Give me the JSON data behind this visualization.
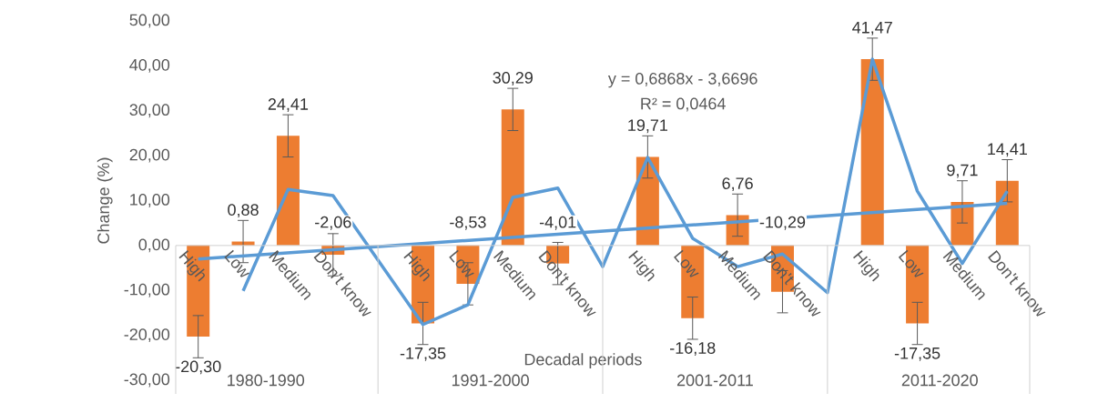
{
  "chart_data": {
    "type": "bar",
    "ylabel": "Change (%)",
    "xlabel": "Decadal periods",
    "categories": [
      "High",
      "Low",
      "Medium",
      "Don't know",
      null,
      "High",
      "Low",
      "Medium",
      "Don't know",
      null,
      "High",
      "Low",
      "Medium",
      "Don't know",
      null,
      "High",
      "Low",
      "Medium",
      "Don't know"
    ],
    "series": [
      {
        "color": "#ed7d31",
        "values": [
          -20.3,
          0.88,
          24.41,
          -2.06,
          null,
          -17.35,
          -8.53,
          30.29,
          -4.01,
          null,
          19.71,
          -16.18,
          6.76,
          -10.29,
          null,
          41.47,
          -17.35,
          9.71,
          14.41
        ],
        "errors": [
          4.7,
          4.7,
          4.7,
          4.7,
          null,
          4.7,
          4.7,
          4.7,
          4.7,
          null,
          4.7,
          4.7,
          4.7,
          4.7,
          null,
          4.7,
          4.7,
          4.7,
          4.7
        ],
        "value_labels": [
          "-20,30",
          "0,88",
          "24,41",
          "-2,06",
          null,
          "-17,35",
          "-8,53",
          "30,29",
          "-4,01",
          null,
          "19,71",
          "-16,18",
          "6,76",
          "-10,29",
          null,
          "41,47",
          "-17,35",
          "9,71",
          "14,41"
        ]
      },
      {
        "type": "line",
        "color": "#5b9bd5",
        "values": [
          null,
          -10.1,
          12.5,
          11.1,
          null,
          -17.6,
          -13.2,
          10.7,
          12.8,
          -4.7,
          19.6,
          1.6,
          -4.7,
          -1.9,
          -10.5,
          41.5,
          12.1,
          -4.0,
          12.1
        ]
      },
      {
        "type": "line",
        "color": "#5b9bd5",
        "values": [
          -3.0,
          null,
          null,
          null,
          null,
          null,
          null,
          null,
          null,
          null,
          null,
          null,
          null,
          null,
          null,
          null,
          null,
          null,
          9.4
        ]
      }
    ],
    "ylim": [
      -30,
      50
    ],
    "yticks": [
      {
        "value": -30,
        "label": "-30,00"
      },
      {
        "value": -20,
        "label": "-20,00"
      },
      {
        "value": -10,
        "label": "-10,00"
      },
      {
        "value": 0,
        "label": "0,00"
      },
      {
        "value": 10,
        "label": "10,00"
      },
      {
        "value": 20,
        "label": "20,00"
      },
      {
        "value": 30,
        "label": "30,00"
      },
      {
        "value": 40,
        "label": "40,00"
      },
      {
        "value": 50,
        "label": "50,00"
      }
    ],
    "annotations": [
      "y = 0,6868x - 3,6696",
      "R² = 0,0464",
      "1980-1990",
      "1991-2000",
      "2001-2011",
      "2011-2020"
    ]
  }
}
